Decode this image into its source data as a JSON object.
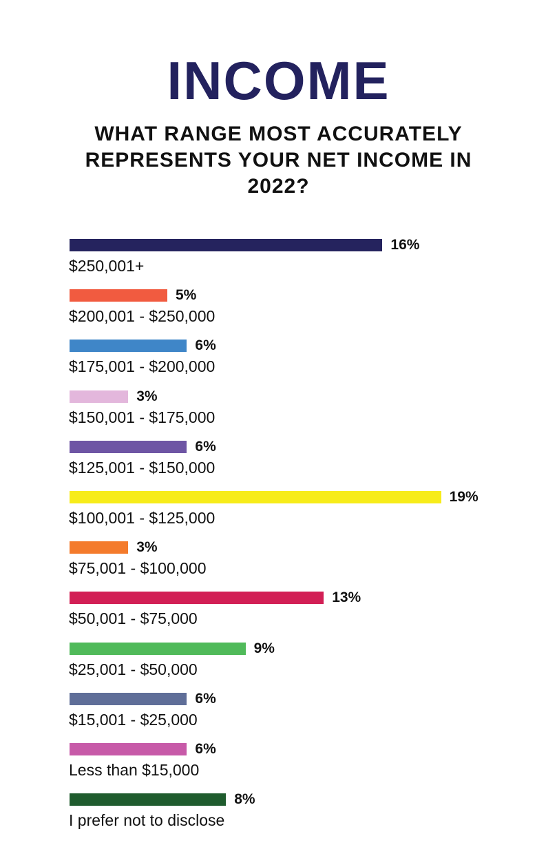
{
  "chart_data": {
    "type": "bar",
    "orientation": "horizontal",
    "title": "INCOME",
    "subtitle": "WHAT RANGE MOST ACCURATELY REPRESENTS YOUR NET INCOME IN 2022?",
    "categories": [
      "$250,001+",
      "$200,001 - $250,000",
      "$175,001 - $200,000",
      "$150,001 - $175,000",
      "$125,001 - $150,000",
      "$100,001 - $125,000",
      "$75,001 - $100,000",
      "$50,001 - $75,000",
      "$25,001 - $50,000",
      "$15,001 - $25,000",
      "Less than $15,000",
      "I prefer not to disclose"
    ],
    "values": [
      16,
      5,
      6,
      3,
      6,
      19,
      3,
      13,
      9,
      6,
      6,
      8
    ],
    "value_labels": [
      "16%",
      "5%",
      "6%",
      "3%",
      "6%",
      "19%",
      "3%",
      "13%",
      "9%",
      "6%",
      "6%",
      "8%"
    ],
    "colors": [
      "#25235e",
      "#f15b40",
      "#3f86c8",
      "#e3b7dc",
      "#6e55a4",
      "#f7ec1a",
      "#f47b2c",
      "#d21f55",
      "#50ba5a",
      "#5f6e98",
      "#c75aa8",
      "#1f5c2e"
    ],
    "xlim": [
      0,
      19
    ],
    "xlabel": "",
    "ylabel": "",
    "grid": false
  }
}
